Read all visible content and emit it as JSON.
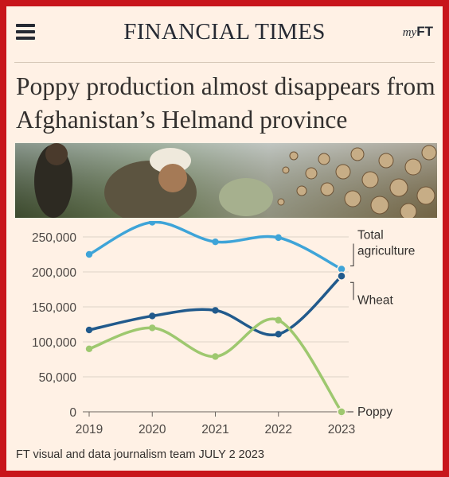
{
  "masthead": {
    "brand": "FINANCIAL TIMES",
    "myft_prefix": "my",
    "myft_suffix": "FT"
  },
  "headline": "Poppy production almost disappears from Afghanistan’s Helmand province",
  "footer": {
    "credit": "FT visual and data journalism team",
    "date": "JULY 2 2023"
  },
  "chart_data": {
    "type": "line",
    "title": "",
    "xlabel": "",
    "ylabel": "",
    "x": [
      "2019",
      "2020",
      "2021",
      "2022",
      "2023"
    ],
    "ylim": [
      0,
      250000
    ],
    "yticks": [
      "250,000",
      "200,000",
      "150,000",
      "100,000",
      "50,000",
      "0"
    ],
    "yticks_values": [
      250000,
      200000,
      150000,
      100000,
      50000,
      0
    ],
    "grid": true,
    "series": [
      {
        "name": "Total agriculture",
        "label_lines": [
          "Total",
          "agriculture"
        ],
        "values": [
          225000,
          271000,
          243000,
          249000,
          204000
        ],
        "color": "#3ea4d8"
      },
      {
        "name": "Wheat",
        "label_lines": [
          "Wheat"
        ],
        "values": [
          117000,
          137000,
          145000,
          111000,
          194000
        ],
        "color": "#215a8c"
      },
      {
        "name": "Poppy",
        "label_lines": [
          "Poppy"
        ],
        "values": [
          90000,
          120000,
          79000,
          131000,
          0
        ],
        "color": "#9ec86f"
      }
    ]
  }
}
